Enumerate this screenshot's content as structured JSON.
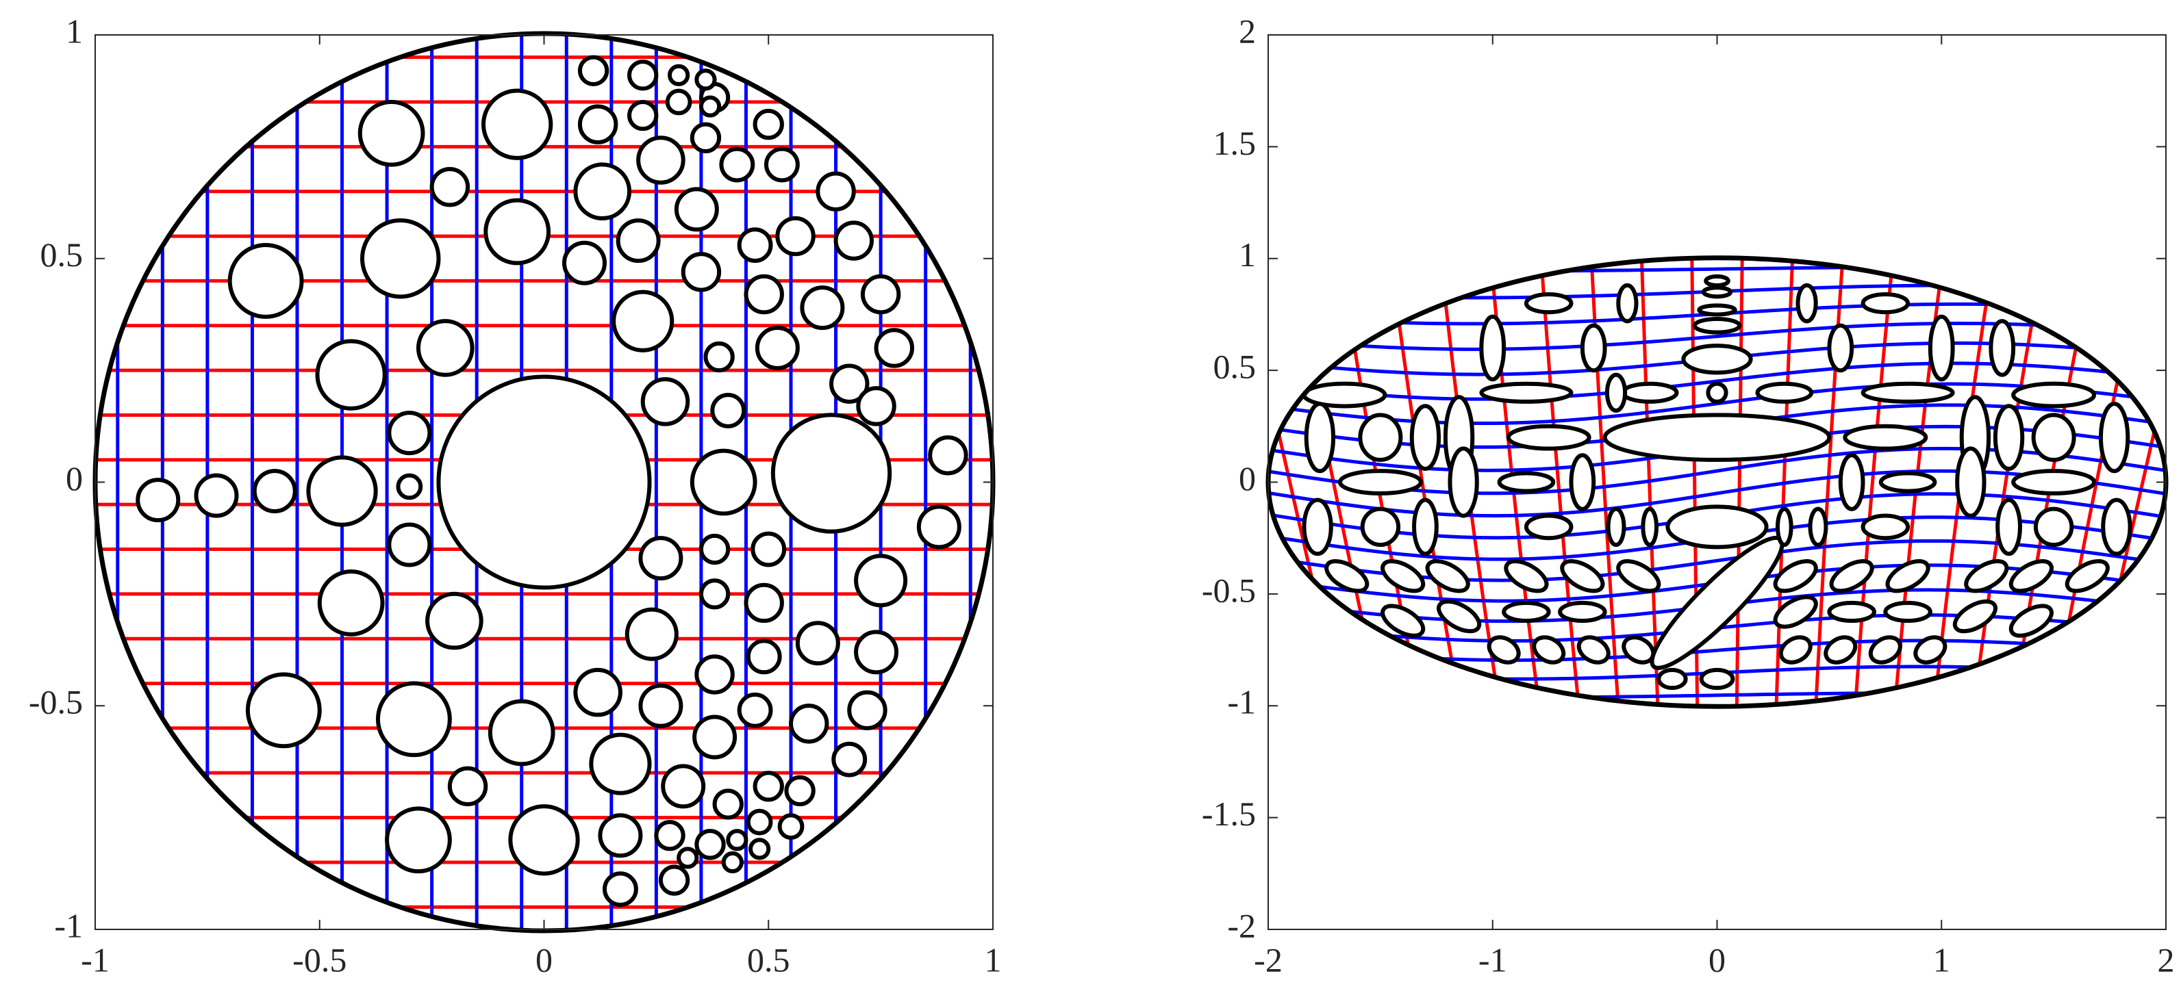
{
  "chart_data": [
    {
      "type": "domain",
      "xlim": [
        -1,
        1
      ],
      "ylim": [
        -1,
        1
      ],
      "xticks": [
        -1,
        -0.5,
        0,
        0.5,
        1
      ],
      "yticks": [
        -1,
        -0.5,
        0,
        0.5,
        1
      ],
      "boundary": {
        "rx": 1,
        "ry": 1
      },
      "colors": {
        "horizontal": "#ff0000",
        "vertical": "#0000ff"
      },
      "y_lines": [
        -0.95,
        -0.85,
        -0.75,
        -0.65,
        -0.55,
        -0.45,
        -0.35,
        -0.25,
        -0.15,
        -0.05,
        0.05,
        0.15,
        0.25,
        0.35,
        0.45,
        0.55,
        0.65,
        0.75,
        0.85,
        0.95
      ],
      "x_lines": [
        -0.95,
        -0.85,
        -0.75,
        -0.65,
        -0.55,
        -0.45,
        -0.35,
        -0.25,
        -0.15,
        -0.05,
        0.05,
        0.15,
        0.25,
        0.35,
        0.45,
        0.55,
        0.65,
        0.75,
        0.85,
        0.95
      ],
      "holes": [
        [
          0,
          0,
          0.235
        ],
        [
          0.64,
          0.02,
          0.13
        ],
        [
          -0.86,
          -0.04,
          0.045
        ],
        [
          -0.73,
          -0.03,
          0.045
        ],
        [
          -0.6,
          -0.02,
          0.045
        ],
        [
          -0.45,
          -0.02,
          0.075
        ],
        [
          -0.3,
          -0.01,
          0.025
        ],
        [
          -0.3,
          0.11,
          0.045
        ],
        [
          -0.3,
          -0.14,
          0.045
        ],
        [
          -0.43,
          0.24,
          0.075
        ],
        [
          -0.22,
          0.3,
          0.06
        ],
        [
          -0.62,
          0.45,
          0.08
        ],
        [
          -0.32,
          0.5,
          0.085
        ],
        [
          -0.06,
          0.56,
          0.07
        ],
        [
          -0.34,
          0.78,
          0.07
        ],
        [
          -0.21,
          0.66,
          0.04
        ],
        [
          -0.06,
          0.8,
          0.075
        ],
        [
          -0.43,
          -0.27,
          0.07
        ],
        [
          -0.2,
          -0.31,
          0.06
        ],
        [
          -0.58,
          -0.51,
          0.08
        ],
        [
          -0.29,
          -0.53,
          0.08
        ],
        [
          -0.05,
          -0.56,
          0.07
        ],
        [
          -0.17,
          -0.68,
          0.04
        ],
        [
          -0.28,
          -0.8,
          0.07
        ],
        [
          0,
          -0.8,
          0.075
        ],
        [
          0.4,
          0,
          0.07
        ],
        [
          0.27,
          0.18,
          0.05
        ],
        [
          0.22,
          0.36,
          0.065
        ],
        [
          0.09,
          0.49,
          0.045
        ],
        [
          0.13,
          0.65,
          0.06
        ],
        [
          0.21,
          0.54,
          0.045
        ],
        [
          0.26,
          0.72,
          0.05
        ],
        [
          0.34,
          0.61,
          0.045
        ],
        [
          0.35,
          0.47,
          0.04
        ],
        [
          0.39,
          0.28,
          0.03
        ],
        [
          0.41,
          0.16,
          0.035
        ],
        [
          0.26,
          -0.17,
          0.045
        ],
        [
          0.38,
          -0.15,
          0.03
        ],
        [
          0.38,
          -0.25,
          0.03
        ],
        [
          0.24,
          -0.34,
          0.055
        ],
        [
          0.12,
          -0.47,
          0.05
        ],
        [
          0.26,
          -0.5,
          0.045
        ],
        [
          0.38,
          -0.43,
          0.04
        ],
        [
          0.38,
          -0.57,
          0.045
        ],
        [
          0.17,
          -0.63,
          0.065
        ],
        [
          0.31,
          -0.68,
          0.045
        ],
        [
          0.41,
          -0.72,
          0.03
        ],
        [
          0.17,
          -0.79,
          0.045
        ],
        [
          0.28,
          -0.79,
          0.03
        ],
        [
          0.17,
          -0.91,
          0.035
        ],
        [
          0.29,
          -0.89,
          0.03
        ],
        [
          0.37,
          -0.81,
          0.03
        ],
        [
          0.47,
          -0.51,
          0.035
        ],
        [
          0.49,
          -0.39,
          0.035
        ],
        [
          0.49,
          -0.27,
          0.04
        ],
        [
          0.5,
          -0.15,
          0.035
        ],
        [
          0.49,
          0.42,
          0.04
        ],
        [
          0.52,
          0.3,
          0.045
        ],
        [
          0.47,
          0.53,
          0.035
        ],
        [
          0.56,
          0.55,
          0.04
        ],
        [
          0.62,
          0.39,
          0.045
        ],
        [
          0.68,
          0.22,
          0.04
        ],
        [
          0.74,
          0.17,
          0.04
        ],
        [
          0.75,
          0.42,
          0.04
        ],
        [
          0.78,
          0.3,
          0.04
        ],
        [
          0.69,
          0.54,
          0.04
        ],
        [
          0.65,
          0.65,
          0.04
        ],
        [
          0.53,
          0.71,
          0.035
        ],
        [
          0.43,
          0.71,
          0.035
        ],
        [
          0.36,
          0.77,
          0.03
        ],
        [
          0.38,
          0.86,
          0.03
        ],
        [
          0.5,
          0.8,
          0.03
        ],
        [
          0.11,
          0.92,
          0.03
        ],
        [
          0.12,
          0.8,
          0.04
        ],
        [
          0.22,
          0.91,
          0.03
        ],
        [
          0.22,
          0.82,
          0.03
        ],
        [
          0.3,
          0.91,
          0.02
        ],
        [
          0.3,
          0.85,
          0.025
        ],
        [
          0.36,
          0.9,
          0.02
        ],
        [
          0.37,
          0.84,
          0.02
        ],
        [
          0.9,
          0.06,
          0.04
        ],
        [
          0.88,
          -0.1,
          0.045
        ],
        [
          0.75,
          -0.22,
          0.055
        ],
        [
          0.74,
          -0.38,
          0.045
        ],
        [
          0.61,
          -0.36,
          0.045
        ],
        [
          0.59,
          -0.54,
          0.04
        ],
        [
          0.72,
          -0.51,
          0.04
        ],
        [
          0.68,
          -0.62,
          0.035
        ],
        [
          0.5,
          -0.68,
          0.03
        ],
        [
          0.57,
          -0.69,
          0.03
        ],
        [
          0.48,
          -0.76,
          0.025
        ],
        [
          0.55,
          -0.77,
          0.025
        ],
        [
          0.48,
          -0.82,
          0.02
        ],
        [
          0.43,
          -0.8,
          0.02
        ],
        [
          0.42,
          -0.85,
          0.02
        ],
        [
          0.32,
          -0.84,
          0.02
        ]
      ]
    },
    {
      "type": "domain",
      "xlim": [
        -2,
        2
      ],
      "ylim": [
        -2,
        2
      ],
      "xticks": [
        -2,
        -1,
        0,
        1,
        2
      ],
      "yticks": [
        -2,
        -1.5,
        -1,
        -0.5,
        0,
        0.5,
        1,
        1.5,
        2
      ],
      "boundary": {
        "rx": 2,
        "ry": 1
      },
      "colors": {
        "horizontal": "#0000ff",
        "vertical": "#ff0000"
      },
      "holes": [
        [
          0,
          0.2,
          0.5,
          0.1,
          0
        ],
        [
          0,
          -0.2,
          0.22,
          0.09,
          0
        ],
        [
          0,
          -0.54,
          0.4,
          0.09,
          45
        ],
        [
          0,
          0.4,
          0.04,
          0.04,
          0
        ],
        [
          0,
          0.55,
          0.15,
          0.06,
          0
        ],
        [
          0,
          0.7,
          0.1,
          0.03,
          0
        ],
        [
          0,
          0.77,
          0.08,
          0.02,
          0
        ],
        [
          0,
          0.85,
          0.06,
          0.02,
          0
        ],
        [
          0,
          0.9,
          0.05,
          0.02,
          0
        ],
        [
          -0.2,
          -0.88,
          0.06,
          0.04,
          0
        ],
        [
          0,
          -0.88,
          0.07,
          0.04,
          0
        ],
        [
          -1.77,
          0.2,
          0.06,
          0.15,
          0
        ],
        [
          -1.5,
          0.2,
          0.09,
          0.1,
          0
        ],
        [
          -1.3,
          0.2,
          0.06,
          0.14,
          0
        ],
        [
          -1.15,
          0.2,
          0.06,
          0.18,
          0
        ],
        [
          -1.66,
          0.39,
          0.18,
          0.05,
          0
        ],
        [
          -1.5,
          0,
          0.18,
          0.05,
          0
        ],
        [
          -1.78,
          -0.2,
          0.06,
          0.12,
          0
        ],
        [
          -1.5,
          -0.2,
          0.08,
          0.08,
          0
        ],
        [
          -1.3,
          -0.2,
          0.05,
          0.12,
          0
        ],
        [
          -1.13,
          0,
          0.06,
          0.15,
          0
        ],
        [
          -0.75,
          0.2,
          0.18,
          0.05,
          0
        ],
        [
          -0.85,
          0.4,
          0.2,
          0.04,
          0
        ],
        [
          -0.85,
          0,
          0.12,
          0.04,
          0
        ],
        [
          -0.6,
          0,
          0.05,
          0.12,
          0
        ],
        [
          -0.75,
          -0.2,
          0.1,
          0.05,
          0
        ],
        [
          -0.45,
          -0.2,
          0.035,
          0.08,
          0
        ],
        [
          -0.3,
          -0.2,
          0.03,
          0.08,
          0
        ],
        [
          -0.3,
          0.4,
          0.12,
          0.04,
          0
        ],
        [
          -0.45,
          0.4,
          0.04,
          0.08,
          0
        ],
        [
          -0.75,
          0.8,
          0.1,
          0.04,
          0
        ],
        [
          -0.4,
          0.8,
          0.04,
          0.08,
          0
        ],
        [
          -1,
          0.6,
          0.05,
          0.14,
          0
        ],
        [
          -0.55,
          0.6,
          0.05,
          0.1,
          0
        ],
        [
          1.77,
          0.2,
          0.06,
          0.15,
          0
        ],
        [
          1.5,
          0.2,
          0.09,
          0.1,
          0
        ],
        [
          1.3,
          0.2,
          0.06,
          0.14,
          0
        ],
        [
          1.15,
          0.2,
          0.06,
          0.18,
          0
        ],
        [
          1.5,
          0.39,
          0.18,
          0.05,
          0
        ],
        [
          1.5,
          0,
          0.18,
          0.05,
          0
        ],
        [
          1.78,
          -0.2,
          0.06,
          0.12,
          0
        ],
        [
          1.5,
          -0.2,
          0.08,
          0.08,
          0
        ],
        [
          1.3,
          -0.2,
          0.05,
          0.12,
          0
        ],
        [
          1.13,
          0,
          0.06,
          0.15,
          0
        ],
        [
          0.75,
          0.2,
          0.18,
          0.05,
          0
        ],
        [
          0.85,
          0.4,
          0.2,
          0.04,
          0
        ],
        [
          0.85,
          0,
          0.12,
          0.04,
          0
        ],
        [
          0.6,
          0,
          0.05,
          0.12,
          0
        ],
        [
          0.75,
          -0.2,
          0.1,
          0.05,
          0
        ],
        [
          0.45,
          -0.2,
          0.035,
          0.08,
          0
        ],
        [
          0.3,
          -0.2,
          0.03,
          0.08,
          0
        ],
        [
          0.3,
          0.4,
          0.12,
          0.04,
          0
        ],
        [
          0.75,
          0.8,
          0.1,
          0.04,
          0
        ],
        [
          0.4,
          0.8,
          0.04,
          0.08,
          0
        ],
        [
          1,
          0.6,
          0.05,
          0.14,
          0
        ],
        [
          0.55,
          0.6,
          0.05,
          0.1,
          0
        ],
        [
          1.27,
          0.6,
          0.05,
          0.12,
          0
        ],
        [
          -1.65,
          -0.42,
          0.1,
          0.05,
          -30
        ],
        [
          -1.4,
          -0.42,
          0.1,
          0.05,
          -30
        ],
        [
          -1.2,
          -0.42,
          0.1,
          0.05,
          -30
        ],
        [
          -0.85,
          -0.42,
          0.1,
          0.05,
          -30
        ],
        [
          -0.6,
          -0.42,
          0.1,
          0.05,
          -30
        ],
        [
          -0.35,
          -0.42,
          0.1,
          0.05,
          -30
        ],
        [
          0.35,
          -0.42,
          0.1,
          0.05,
          30
        ],
        [
          0.6,
          -0.42,
          0.1,
          0.05,
          30
        ],
        [
          0.85,
          -0.42,
          0.1,
          0.05,
          30
        ],
        [
          1.2,
          -0.42,
          0.1,
          0.05,
          30
        ],
        [
          1.4,
          -0.42,
          0.1,
          0.05,
          30
        ],
        [
          1.65,
          -0.42,
          0.1,
          0.05,
          30
        ],
        [
          -1.4,
          -0.62,
          0.1,
          0.05,
          -30
        ],
        [
          -1.15,
          -0.6,
          0.1,
          0.05,
          -30
        ],
        [
          -0.85,
          -0.58,
          0.1,
          0.04,
          0
        ],
        [
          -0.6,
          -0.58,
          0.1,
          0.04,
          0
        ],
        [
          0.35,
          -0.58,
          0.1,
          0.05,
          30
        ],
        [
          0.6,
          -0.58,
          0.1,
          0.04,
          0
        ],
        [
          0.85,
          -0.58,
          0.1,
          0.04,
          0
        ],
        [
          1.15,
          -0.6,
          0.1,
          0.05,
          30
        ],
        [
          1.4,
          -0.62,
          0.1,
          0.05,
          30
        ],
        [
          -0.95,
          -0.75,
          0.07,
          0.05,
          -30
        ],
        [
          -0.75,
          -0.75,
          0.07,
          0.05,
          -30
        ],
        [
          -0.55,
          -0.75,
          0.07,
          0.05,
          -30
        ],
        [
          -0.35,
          -0.75,
          0.07,
          0.05,
          -30
        ],
        [
          0.35,
          -0.75,
          0.07,
          0.05,
          30
        ],
        [
          0.55,
          -0.75,
          0.07,
          0.05,
          30
        ],
        [
          0.75,
          -0.75,
          0.07,
          0.05,
          30
        ],
        [
          0.95,
          -0.75,
          0.07,
          0.05,
          30
        ]
      ]
    }
  ]
}
